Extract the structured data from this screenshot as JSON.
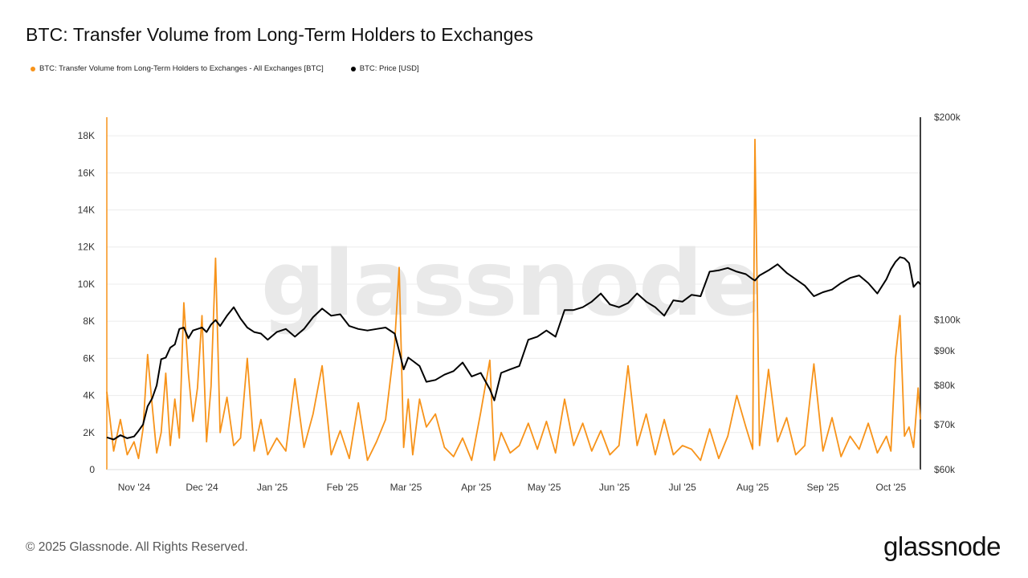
{
  "title": "BTC: Transfer Volume from Long-Term Holders to Exchanges",
  "footer": "© 2025 Glassnode. All Rights Reserved.",
  "brand": "glassnode",
  "watermark": "glassnode",
  "colors": {
    "volume": "#f7931a",
    "price": "#000000",
    "grid": "#ececec"
  },
  "chart_data": {
    "type": "line",
    "title": "BTC: Transfer Volume from Long-Term Holders to Exchanges",
    "legend_position": "top-left",
    "grid": true,
    "x_range": [
      "2024-10-20",
      "2025-10-14"
    ],
    "x_ticks": [
      "Nov '24",
      "Dec '24",
      "Jan '25",
      "Feb '25",
      "Mar '25",
      "Apr '25",
      "May '25",
      "Jun '25",
      "Jul '25",
      "Aug '25",
      "Sep '25",
      "Oct '25"
    ],
    "y_left": {
      "ticks": [
        "0",
        "2K",
        "4K",
        "6K",
        "8K",
        "10K",
        "12K",
        "14K",
        "16K",
        "18K"
      ],
      "range": [
        0,
        19000
      ],
      "unit": "BTC"
    },
    "y_right": {
      "ticks": [
        "$60k",
        "$70k",
        "$80k",
        "$90k",
        "$100k",
        "$200k"
      ],
      "range": [
        60000,
        200000
      ],
      "scale": "log",
      "unit": "USD"
    },
    "series": [
      {
        "name": "BTC: Transfer Volume from Long-Term Holders to Exchanges - All Exchanges [BTC]",
        "axis": "left",
        "x": [
          "2024-10-20",
          "2024-10-23",
          "2024-10-26",
          "2024-10-29",
          "2024-11-01",
          "2024-11-03",
          "2024-11-05",
          "2024-11-07",
          "2024-11-09",
          "2024-11-11",
          "2024-11-13",
          "2024-11-15",
          "2024-11-17",
          "2024-11-19",
          "2024-11-21",
          "2024-11-23",
          "2024-11-25",
          "2024-11-27",
          "2024-11-29",
          "2024-12-01",
          "2024-12-03",
          "2024-12-05",
          "2024-12-07",
          "2024-12-09",
          "2024-12-12",
          "2024-12-15",
          "2024-12-18",
          "2024-12-21",
          "2024-12-24",
          "2024-12-27",
          "2024-12-30",
          "2025-01-03",
          "2025-01-07",
          "2025-01-11",
          "2025-01-15",
          "2025-01-19",
          "2025-01-23",
          "2025-01-27",
          "2025-01-31",
          "2025-02-04",
          "2025-02-08",
          "2025-02-12",
          "2025-02-16",
          "2025-02-20",
          "2025-02-24",
          "2025-02-26",
          "2025-02-28",
          "2025-03-02",
          "2025-03-04",
          "2025-03-07",
          "2025-03-10",
          "2025-03-14",
          "2025-03-18",
          "2025-03-22",
          "2025-03-26",
          "2025-03-30",
          "2025-04-03",
          "2025-04-07",
          "2025-04-09",
          "2025-04-12",
          "2025-04-16",
          "2025-04-20",
          "2025-04-24",
          "2025-04-28",
          "2025-05-02",
          "2025-05-06",
          "2025-05-10",
          "2025-05-14",
          "2025-05-18",
          "2025-05-22",
          "2025-05-26",
          "2025-05-30",
          "2025-06-03",
          "2025-06-07",
          "2025-06-11",
          "2025-06-15",
          "2025-06-19",
          "2025-06-23",
          "2025-06-27",
          "2025-07-01",
          "2025-07-05",
          "2025-07-09",
          "2025-07-13",
          "2025-07-17",
          "2025-07-21",
          "2025-07-25",
          "2025-07-29",
          "2025-08-01",
          "2025-08-02",
          "2025-08-04",
          "2025-08-08",
          "2025-08-12",
          "2025-08-16",
          "2025-08-20",
          "2025-08-24",
          "2025-08-28",
          "2025-09-01",
          "2025-09-05",
          "2025-09-09",
          "2025-09-13",
          "2025-09-17",
          "2025-09-21",
          "2025-09-25",
          "2025-09-29",
          "2025-10-01",
          "2025-10-03",
          "2025-10-05",
          "2025-10-07",
          "2025-10-09",
          "2025-10-11",
          "2025-10-13",
          "2025-10-14"
        ],
        "values": [
          4200,
          1000,
          2700,
          800,
          1500,
          600,
          2200,
          6200,
          3500,
          900,
          2000,
          5200,
          1300,
          3800,
          1700,
          9000,
          5200,
          2600,
          4400,
          8300,
          1500,
          4500,
          11400,
          2000,
          3900,
          1300,
          1700,
          6000,
          1000,
          2700,
          800,
          1700,
          1000,
          4900,
          1200,
          3000,
          5600,
          800,
          2100,
          600,
          3600,
          500,
          1500,
          2700,
          6800,
          10900,
          1200,
          3800,
          800,
          3800,
          2300,
          3000,
          1200,
          700,
          1700,
          500,
          3100,
          5900,
          500,
          2000,
          900,
          1300,
          2500,
          1100,
          2600,
          900,
          3800,
          1300,
          2500,
          1000,
          2100,
          800,
          1300,
          5600,
          1300,
          3000,
          800,
          2700,
          800,
          1300,
          1100,
          500,
          2200,
          600,
          1800,
          4000,
          2300,
          1100,
          17800,
          1300,
          5400,
          1500,
          2800,
          800,
          1300,
          5700,
          1000,
          2800,
          700,
          1800,
          1100,
          2500,
          900,
          1800,
          1000,
          6000,
          8300,
          1800,
          2300,
          1200,
          4400,
          2700
        ]
      },
      {
        "name": "BTC: Price [USD]",
        "axis": "right",
        "x": [
          "2024-10-20",
          "2024-10-23",
          "2024-10-26",
          "2024-10-29",
          "2024-11-01",
          "2024-11-03",
          "2024-11-05",
          "2024-11-07",
          "2024-11-09",
          "2024-11-11",
          "2024-11-13",
          "2024-11-15",
          "2024-11-17",
          "2024-11-19",
          "2024-11-21",
          "2024-11-23",
          "2024-11-25",
          "2024-11-27",
          "2024-11-29",
          "2024-12-01",
          "2024-12-03",
          "2024-12-05",
          "2024-12-07",
          "2024-12-09",
          "2024-12-12",
          "2024-12-15",
          "2024-12-18",
          "2024-12-21",
          "2024-12-24",
          "2024-12-27",
          "2024-12-30",
          "2025-01-03",
          "2025-01-07",
          "2025-01-11",
          "2025-01-15",
          "2025-01-19",
          "2025-01-23",
          "2025-01-27",
          "2025-01-31",
          "2025-02-04",
          "2025-02-08",
          "2025-02-12",
          "2025-02-16",
          "2025-02-20",
          "2025-02-24",
          "2025-02-26",
          "2025-02-28",
          "2025-03-02",
          "2025-03-04",
          "2025-03-07",
          "2025-03-10",
          "2025-03-14",
          "2025-03-18",
          "2025-03-22",
          "2025-03-26",
          "2025-03-30",
          "2025-04-03",
          "2025-04-07",
          "2025-04-09",
          "2025-04-12",
          "2025-04-16",
          "2025-04-20",
          "2025-04-24",
          "2025-04-28",
          "2025-05-02",
          "2025-05-06",
          "2025-05-10",
          "2025-05-14",
          "2025-05-18",
          "2025-05-22",
          "2025-05-26",
          "2025-05-30",
          "2025-06-03",
          "2025-06-07",
          "2025-06-11",
          "2025-06-15",
          "2025-06-19",
          "2025-06-23",
          "2025-06-27",
          "2025-07-01",
          "2025-07-05",
          "2025-07-09",
          "2025-07-13",
          "2025-07-17",
          "2025-07-21",
          "2025-07-25",
          "2025-07-29",
          "2025-08-01",
          "2025-08-02",
          "2025-08-04",
          "2025-08-08",
          "2025-08-12",
          "2025-08-16",
          "2025-08-20",
          "2025-08-24",
          "2025-08-28",
          "2025-09-01",
          "2025-09-05",
          "2025-09-09",
          "2025-09-13",
          "2025-09-17",
          "2025-09-21",
          "2025-09-25",
          "2025-09-29",
          "2025-10-01",
          "2025-10-03",
          "2025-10-05",
          "2025-10-07",
          "2025-10-09",
          "2025-10-11",
          "2025-10-13",
          "2025-10-14"
        ],
        "values": [
          67000,
          66500,
          67500,
          66800,
          67200,
          68500,
          70000,
          74500,
          76500,
          80000,
          87500,
          88000,
          91000,
          92000,
          97000,
          97500,
          94000,
          96500,
          97000,
          97500,
          96000,
          98500,
          100000,
          98000,
          101500,
          104500,
          100500,
          97500,
          96000,
          95500,
          93500,
          96000,
          97000,
          94500,
          97000,
          101000,
          104000,
          101500,
          102000,
          98000,
          97000,
          96500,
          97000,
          97500,
          95500,
          90000,
          84500,
          88000,
          87000,
          85500,
          81000,
          81500,
          83000,
          84000,
          86500,
          82500,
          83500,
          79000,
          76000,
          83500,
          84500,
          85500,
          93500,
          94500,
          96500,
          94500,
          103500,
          103500,
          104500,
          106500,
          109500,
          105500,
          104500,
          106000,
          109500,
          106500,
          104500,
          101500,
          107000,
          106500,
          109000,
          108500,
          118000,
          118500,
          119500,
          118000,
          117000,
          115000,
          114500,
          116500,
          118500,
          121000,
          117500,
          115000,
          112500,
          108500,
          110000,
          111000,
          113500,
          115500,
          116500,
          113500,
          109500,
          115000,
          119000,
          122000,
          124000,
          123500,
          121500,
          112000,
          114000,
          113000
        ]
      }
    ]
  }
}
